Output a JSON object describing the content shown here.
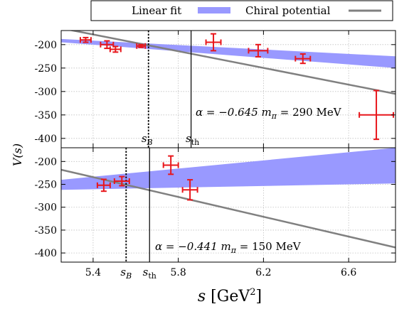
{
  "colors": {
    "band": "#9999ff",
    "fit_line": "#808080",
    "points": "#e8161b",
    "grid": "#c0c0c0"
  },
  "legend": {
    "band_label": "Linear fit",
    "line_label": "Chiral potential",
    "placement": "top-outside"
  },
  "chart_data": {
    "type": "scatter",
    "xlabel": "s [GeV²]",
    "xlabel_main": "s",
    "xlabel_unit": "[GeV",
    "xlabel_sup": "2",
    "xlabel_close": "]",
    "ylabel": "V(s)",
    "ylabel_main": "V",
    "ylabel_arg": "(s)",
    "xlim": [
      5.25,
      6.82
    ],
    "x_ticks": [
      5.4,
      5.8,
      6.2,
      6.6
    ],
    "x_tick_labels": [
      "5.4",
      "5.8",
      "6.2",
      "6.6"
    ],
    "grid": true,
    "panels": [
      {
        "name": "upper",
        "ylim": [
          -420,
          -170
        ],
        "y_ticks": [
          -200,
          -250,
          -300,
          -350,
          -400
        ],
        "y_tick_labels": [
          "-200",
          "-250",
          "-300",
          "-350",
          "-400"
        ],
        "annotation_alpha": "α = −0.645",
        "annotation_mpi": "m",
        "annotation_mpi_sub": "π",
        "annotation_mpi_val": " = 290 MeV",
        "sB": 5.66,
        "sB_label": "s",
        "sB_sub": "B",
        "sth": 5.86,
        "sth_label": "s",
        "sth_sub": "th",
        "points": [
          {
            "x": 5.365,
            "xerr": 0.025,
            "y": -190,
            "yerr": 5
          },
          {
            "x": 5.465,
            "xerr": 0.03,
            "y": -200,
            "yerr": 8
          },
          {
            "x": 5.505,
            "xerr": 0.025,
            "y": -210,
            "yerr": 6
          },
          {
            "x": 5.625,
            "xerr": 0.02,
            "y": -203,
            "yerr": 3
          },
          {
            "x": 5.965,
            "xerr": 0.035,
            "y": -195,
            "yerr": 18
          },
          {
            "x": 6.175,
            "xerr": 0.045,
            "y": -213,
            "yerr": 13
          },
          {
            "x": 6.385,
            "xerr": 0.035,
            "y": -230,
            "yerr": 10
          },
          {
            "x": 6.73,
            "xerr": 0.08,
            "y": -350,
            "yerr": 52
          }
        ],
        "band_lower": [
          [
            5.25,
            -195
          ],
          [
            6.82,
            -250
          ]
        ],
        "band_upper": [
          [
            5.25,
            -188
          ],
          [
            6.82,
            -225
          ]
        ],
        "line": [
          [
            5.25,
            -165
          ],
          [
            6.82,
            -305
          ]
        ]
      },
      {
        "name": "lower",
        "ylim": [
          -420,
          -170
        ],
        "y_ticks": [
          -200,
          -250,
          -300,
          -350,
          -400
        ],
        "y_tick_labels": [
          "-200",
          "-250",
          "-300",
          "-350",
          "-400"
        ],
        "annotation_alpha": "α = −0.441",
        "annotation_mpi": "m",
        "annotation_mpi_sub": "π",
        "annotation_mpi_val": " = 150 MeV",
        "sB": 5.555,
        "sB_label": "s",
        "sB_sub": "B",
        "sth": 5.665,
        "sth_label": "s",
        "sth_sub": "th",
        "points": [
          {
            "x": 5.45,
            "xerr": 0.03,
            "y": -252,
            "yerr": 13
          },
          {
            "x": 5.535,
            "xerr": 0.035,
            "y": -243,
            "yerr": 10
          },
          {
            "x": 5.765,
            "xerr": 0.035,
            "y": -208,
            "yerr": 20
          },
          {
            "x": 5.855,
            "xerr": 0.035,
            "y": -262,
            "yerr": 22
          }
        ],
        "band_lower": [
          [
            5.25,
            -262
          ],
          [
            6.82,
            -248
          ]
        ],
        "band_upper": [
          [
            5.25,
            -240
          ],
          [
            6.82,
            -170
          ]
        ],
        "line": [
          [
            5.25,
            -218
          ],
          [
            6.82,
            -388
          ]
        ]
      }
    ]
  }
}
